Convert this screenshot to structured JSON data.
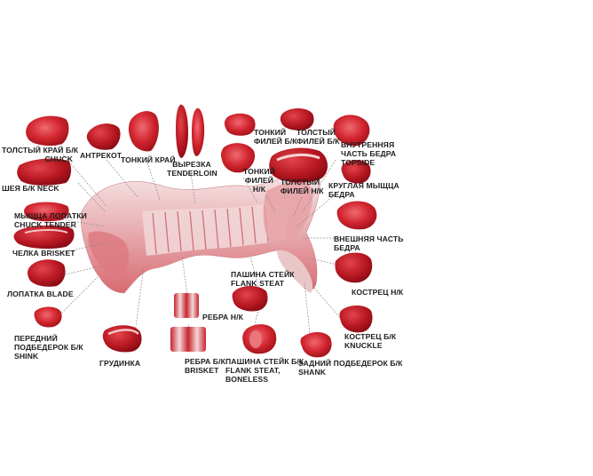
{
  "labels": {
    "chuck": [
      "ТОЛСТЫЙ КРАЙ Б/К",
      "CHUCK"
    ],
    "neck": [
      "ШЕЯ Б/К NECK"
    ],
    "chuck_tender": [
      "МЫЩЦА ЛОПАТКИ",
      "CHUCK TENDER"
    ],
    "brisket_top": [
      "ЧЕЛКА BRISKET"
    ],
    "blade": [
      "ЛОПАТКА BLADE"
    ],
    "shink": [
      "ПЕРЕДНИЙ",
      "ПОДБЕДЕРОК Б/К",
      "SHINK"
    ],
    "entrecote": [
      "АНТРЕКОТ"
    ],
    "thin_edge": [
      "ТОНКИЙ КРАЙ"
    ],
    "tenderloin": [
      "ВЫРЕЗКА",
      "TENDERLOIN"
    ],
    "thin_fillet_bk": [
      "ТОНКИЙ",
      "ФИЛЕЙ Б/К"
    ],
    "thick_fillet_bk": [
      "ТОЛСТЫЙ",
      "ФИЛЕЙ Б/К"
    ],
    "thin_fillet_nk": [
      "ТОНКИЙ",
      "ФИЛЕЙ",
      "Н/К"
    ],
    "thick_fillet_nk": [
      "ТОЛСТЫЙ",
      "ФИЛЕЙ Н/К"
    ],
    "topside": [
      "ВНУТРЕННЯЯ",
      "ЧАСТЬ БЕДРА",
      "TOPSIDE"
    ],
    "round": [
      "КРУГЛАЯ МЫЩЦА",
      "БЕДРА"
    ],
    "outside": [
      "ВНЕШНЯЯ ЧАСТЬ",
      "БЕДРА"
    ],
    "rump_nk": [
      "КОСТРЕЦ Н/К"
    ],
    "knuckle": [
      "КОСТРЕЦ Б/К",
      "KNUCKLE"
    ],
    "hind_shank": [
      "ЗАДНИЙ ПОДБЕДЕРОК Б/К",
      "SHANK"
    ],
    "flank": [
      "ПАШИНА СТЕЙК",
      "FLANK STEAT"
    ],
    "flank_boneless": [
      "ПАШИНА СТЕЙК Б/К",
      "FLANK STEAT,",
      "BONELESS"
    ],
    "ribs_nk": [
      "РЕБРА Н/К"
    ],
    "ribs_bk": [
      "РЕБРА Б/К",
      "BRISKET"
    ],
    "grudinka": [
      "ГРУДИНКА"
    ]
  },
  "colors": {
    "meat_dark": "#b3121c",
    "meat_mid": "#d8323a",
    "meat_light": "#ef8d92",
    "fat": "#f3e3e3",
    "bone": "#e8e2e2",
    "leader": "#8a8a8a",
    "text": "#1e1e1e"
  }
}
